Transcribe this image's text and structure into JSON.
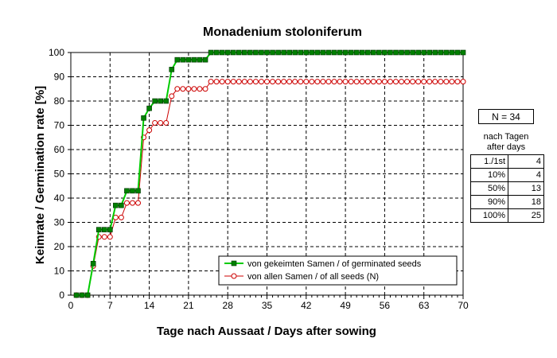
{
  "chart_data": {
    "type": "line",
    "title": "Monadenium stoloniferum",
    "xlabel": "Tage nach Aussaat / Days after sowing",
    "ylabel": "Keimrate / Germination rate [%]",
    "xlim": [
      0,
      70
    ],
    "ylim": [
      0,
      100
    ],
    "xticks": [
      0,
      7,
      14,
      21,
      28,
      35,
      42,
      49,
      56,
      63,
      70
    ],
    "xtick_labels": [
      "0",
      "7",
      "14",
      "21",
      "28",
      "35",
      "42",
      "49",
      "56",
      "63",
      "70"
    ],
    "yticks": [
      0,
      10,
      20,
      30,
      40,
      50,
      60,
      70,
      80,
      90,
      100
    ],
    "ytick_labels": [
      "0",
      "10",
      "20",
      "30",
      "40",
      "50",
      "60",
      "70",
      "80",
      "90",
      "100"
    ],
    "grid": true,
    "legend_position": "bottom-right",
    "series": [
      {
        "name": "von gekeimten Samen / of germinated seeds",
        "color": "#00cc00",
        "marker_color": "#008000",
        "marker": "square",
        "points": [
          [
            1,
            0
          ],
          [
            2,
            0
          ],
          [
            3,
            0
          ],
          [
            4,
            13
          ],
          [
            5,
            27
          ],
          [
            6,
            27
          ],
          [
            7,
            27
          ],
          [
            8,
            37
          ],
          [
            9,
            37
          ],
          [
            10,
            43
          ],
          [
            11,
            43
          ],
          [
            12,
            43
          ],
          [
            13,
            73
          ],
          [
            14,
            77
          ],
          [
            15,
            80
          ],
          [
            16,
            80
          ],
          [
            17,
            80
          ],
          [
            18,
            93
          ],
          [
            19,
            97
          ],
          [
            20,
            97
          ],
          [
            21,
            97
          ],
          [
            22,
            97
          ],
          [
            23,
            97
          ],
          [
            24,
            97
          ],
          [
            25,
            100
          ],
          [
            26,
            100
          ],
          [
            27,
            100
          ],
          [
            28,
            100
          ],
          [
            29,
            100
          ],
          [
            30,
            100
          ],
          [
            31,
            100
          ],
          [
            32,
            100
          ],
          [
            33,
            100
          ],
          [
            34,
            100
          ],
          [
            35,
            100
          ],
          [
            36,
            100
          ],
          [
            37,
            100
          ],
          [
            38,
            100
          ],
          [
            39,
            100
          ],
          [
            40,
            100
          ],
          [
            41,
            100
          ],
          [
            42,
            100
          ],
          [
            43,
            100
          ],
          [
            44,
            100
          ],
          [
            45,
            100
          ],
          [
            46,
            100
          ],
          [
            47,
            100
          ],
          [
            48,
            100
          ],
          [
            49,
            100
          ],
          [
            50,
            100
          ],
          [
            51,
            100
          ],
          [
            52,
            100
          ],
          [
            53,
            100
          ],
          [
            54,
            100
          ],
          [
            55,
            100
          ],
          [
            56,
            100
          ],
          [
            57,
            100
          ],
          [
            58,
            100
          ],
          [
            59,
            100
          ],
          [
            60,
            100
          ],
          [
            61,
            100
          ],
          [
            62,
            100
          ],
          [
            63,
            100
          ],
          [
            64,
            100
          ],
          [
            65,
            100
          ],
          [
            66,
            100
          ],
          [
            67,
            100
          ],
          [
            68,
            100
          ],
          [
            69,
            100
          ],
          [
            70,
            100
          ]
        ]
      },
      {
        "name": "von allen Samen / of all seeds (N)",
        "color": "#cc0000",
        "marker_color": "#cc0000",
        "marker": "circle",
        "points": [
          [
            1,
            0
          ],
          [
            2,
            0
          ],
          [
            3,
            0
          ],
          [
            4,
            12
          ],
          [
            5,
            24
          ],
          [
            6,
            24
          ],
          [
            7,
            24
          ],
          [
            8,
            32
          ],
          [
            9,
            32
          ],
          [
            10,
            38
          ],
          [
            11,
            38
          ],
          [
            12,
            38
          ],
          [
            13,
            65
          ],
          [
            14,
            68
          ],
          [
            15,
            71
          ],
          [
            16,
            71
          ],
          [
            17,
            71
          ],
          [
            18,
            82
          ],
          [
            19,
            85
          ],
          [
            20,
            85
          ],
          [
            21,
            85
          ],
          [
            22,
            85
          ],
          [
            23,
            85
          ],
          [
            24,
            85
          ],
          [
            25,
            88
          ],
          [
            26,
            88
          ],
          [
            27,
            88
          ],
          [
            28,
            88
          ],
          [
            29,
            88
          ],
          [
            30,
            88
          ],
          [
            31,
            88
          ],
          [
            32,
            88
          ],
          [
            33,
            88
          ],
          [
            34,
            88
          ],
          [
            35,
            88
          ],
          [
            36,
            88
          ],
          [
            37,
            88
          ],
          [
            38,
            88
          ],
          [
            39,
            88
          ],
          [
            40,
            88
          ],
          [
            41,
            88
          ],
          [
            42,
            88
          ],
          [
            43,
            88
          ],
          [
            44,
            88
          ],
          [
            45,
            88
          ],
          [
            46,
            88
          ],
          [
            47,
            88
          ],
          [
            48,
            88
          ],
          [
            49,
            88
          ],
          [
            50,
            88
          ],
          [
            51,
            88
          ],
          [
            52,
            88
          ],
          [
            53,
            88
          ],
          [
            54,
            88
          ],
          [
            55,
            88
          ],
          [
            56,
            88
          ],
          [
            57,
            88
          ],
          [
            58,
            88
          ],
          [
            59,
            88
          ],
          [
            60,
            88
          ],
          [
            61,
            88
          ],
          [
            62,
            88
          ],
          [
            63,
            88
          ],
          [
            64,
            88
          ],
          [
            65,
            88
          ],
          [
            66,
            88
          ],
          [
            67,
            88
          ],
          [
            68,
            88
          ],
          [
            69,
            88
          ],
          [
            70,
            88
          ]
        ]
      }
    ]
  },
  "sidebox": {
    "n_label": "N = 34",
    "heading_line1": "nach Tagen",
    "heading_line2": "after days",
    "rows": [
      {
        "label": "1./1st",
        "value": "4"
      },
      {
        "label": "10%",
        "value": "4"
      },
      {
        "label": "50%",
        "value": "13"
      },
      {
        "label": "90%",
        "value": "18"
      },
      {
        "label": "100%",
        "value": "25"
      }
    ]
  }
}
